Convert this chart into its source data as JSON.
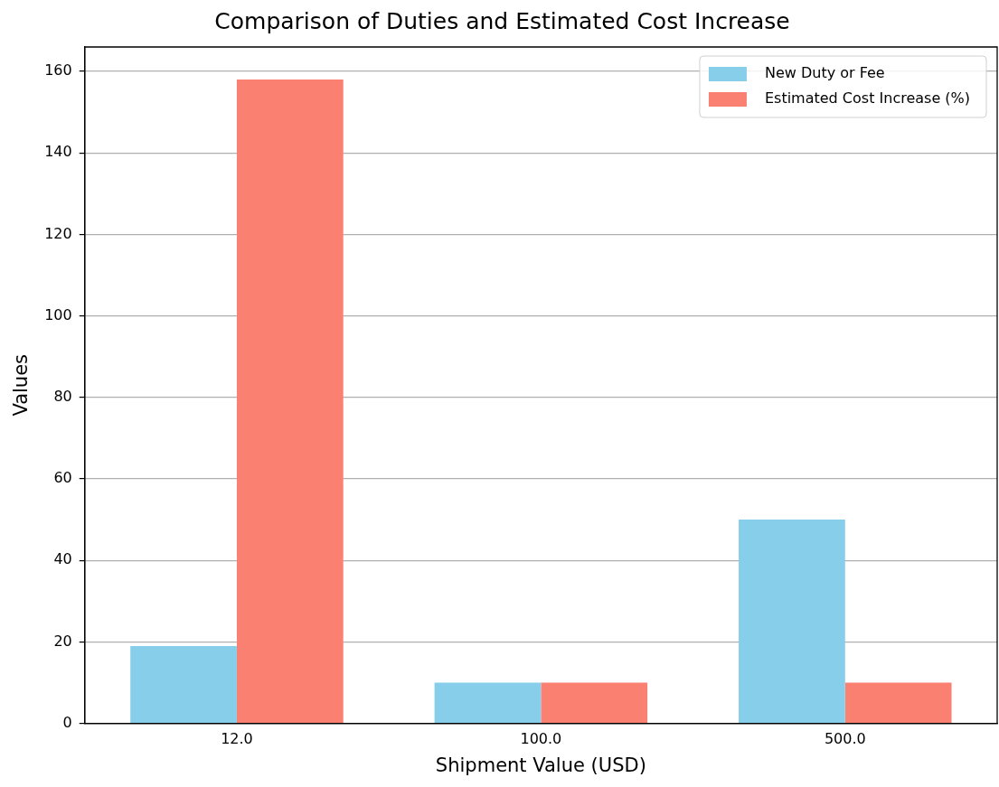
{
  "chart_data": {
    "type": "bar",
    "title": "Comparison of Duties and Estimated Cost Increase",
    "xlabel": "Shipment Value (USD)",
    "ylabel": "Values",
    "categories": [
      "12.0",
      "100.0",
      "500.0"
    ],
    "series": [
      {
        "name": "New Duty or Fee",
        "color": "#87ceeb",
        "values": [
          19,
          10,
          50
        ]
      },
      {
        "name": "Estimated Cost Increase (%)",
        "color": "#fa8072",
        "values": [
          158,
          10,
          10
        ]
      }
    ],
    "ylim": [
      0,
      166
    ],
    "yticks": [
      0,
      20,
      40,
      60,
      80,
      100,
      120,
      140,
      160
    ],
    "grid": "y",
    "legend": "top right"
  }
}
